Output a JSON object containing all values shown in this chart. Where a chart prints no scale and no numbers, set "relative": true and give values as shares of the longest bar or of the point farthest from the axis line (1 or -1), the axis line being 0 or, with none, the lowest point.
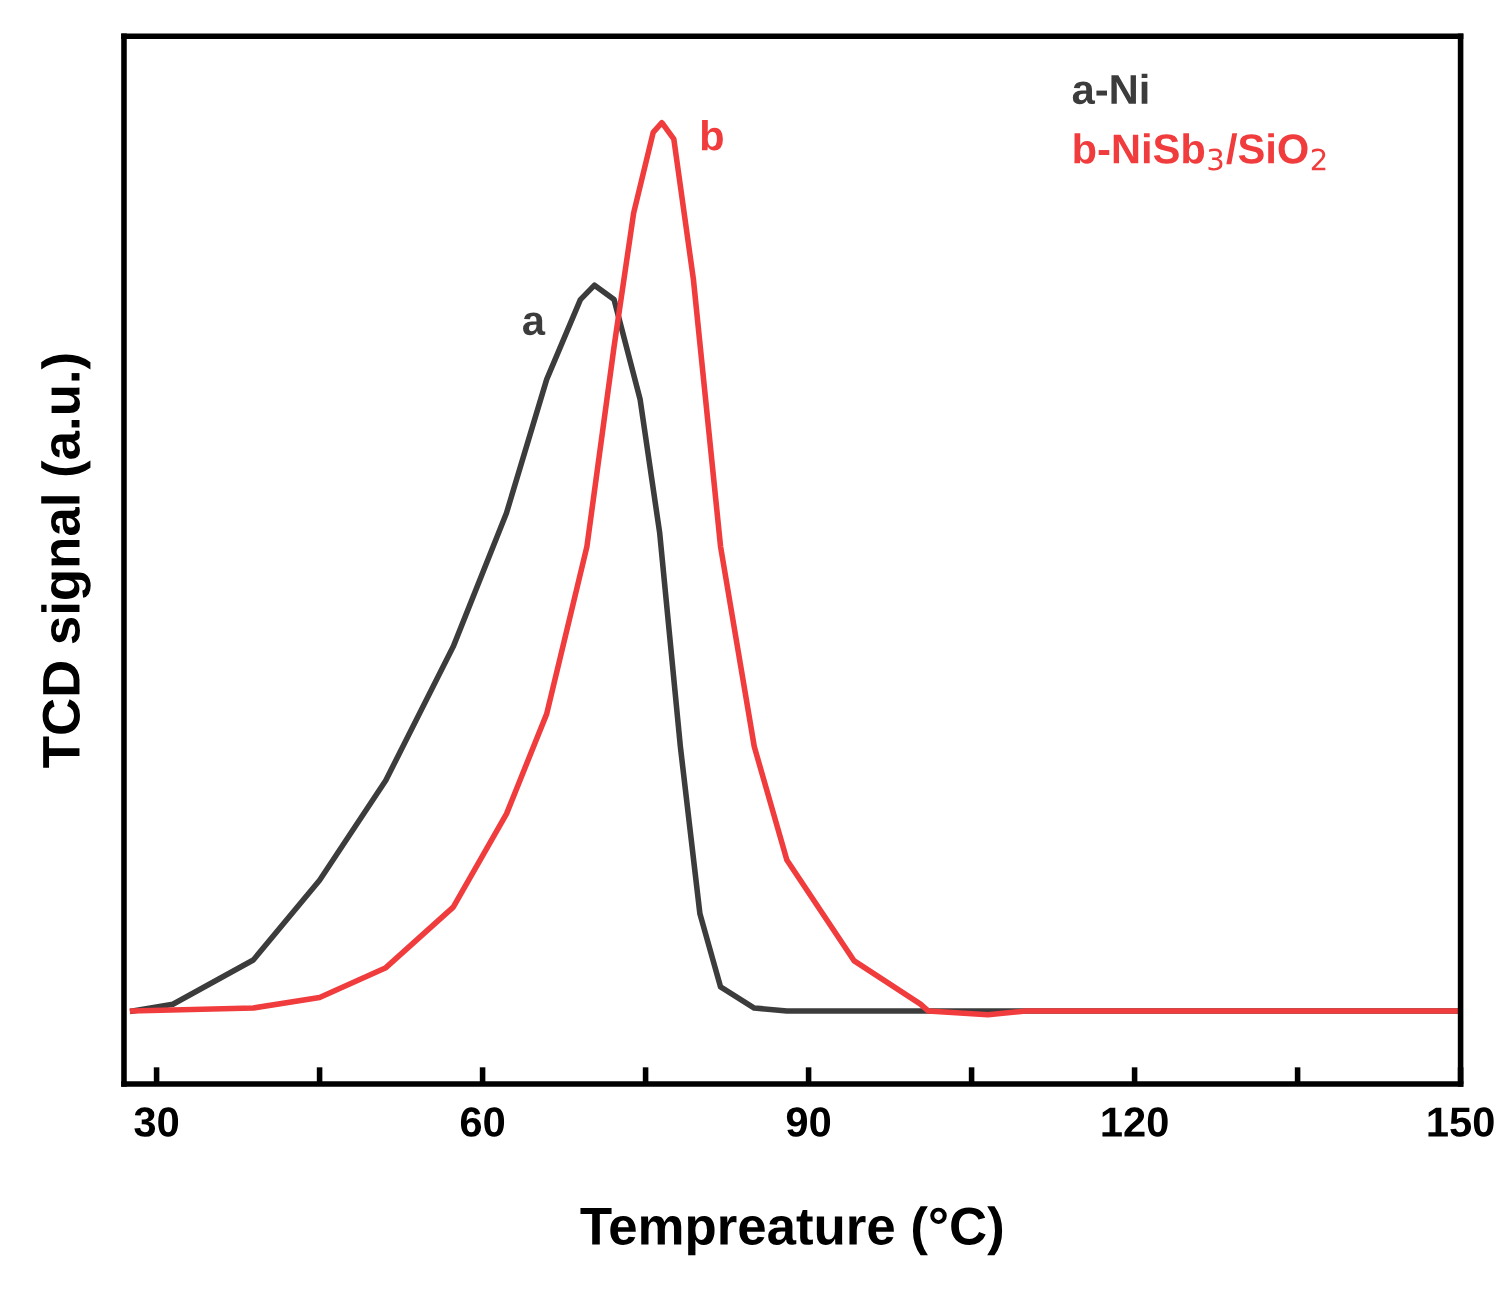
{
  "chart_data": {
    "type": "line",
    "relative": true,
    "xlabel": "Tempreature (°C)",
    "ylabel": "TCD signal (a.u.)",
    "xlim": [
      27,
      150
    ],
    "xticks": [
      30,
      {
        "value": 45,
        "label": null
      },
      60,
      {
        "value": 75,
        "label": null
      },
      90,
      {
        "value": 105,
        "label": null
      },
      120,
      {
        "value": 135,
        "label": null
      },
      150
    ],
    "grid": false,
    "legend": "top right",
    "marker": "none",
    "line_style": "solid",
    "series": [
      {
        "name": "a-Ni",
        "color": "#3c3c3c",
        "x": [
          27.8,
          31.5,
          38.9,
          45.0,
          51.1,
          57.3,
          62.2,
          65.9,
          69.0,
          70.3,
          72.1,
          74.5,
          76.3,
          78.2,
          80.0,
          81.9,
          85.0,
          88.0,
          100,
          120,
          150
        ],
        "values": [
          0.076,
          0.083,
          0.129,
          0.212,
          0.316,
          0.455,
          0.594,
          0.733,
          0.816,
          0.831,
          0.816,
          0.712,
          0.573,
          0.351,
          0.177,
          0.101,
          0.079,
          0.076,
          0.076,
          0.076,
          0.076
        ]
      },
      {
        "name": "b-NiSb$_{3}$/SiO$_{2}$",
        "color": "#f03c3c",
        "x": [
          27.8,
          38.9,
          45.0,
          51.1,
          57.3,
          62.2,
          65.9,
          69.6,
          72.1,
          73.9,
          75.7,
          76.5,
          77.6,
          79.4,
          81.9,
          85.0,
          88.0,
          94.2,
          100.3,
          101.0,
          106.5,
          110,
          120,
          150
        ],
        "values": [
          0.076,
          0.079,
          0.09,
          0.121,
          0.184,
          0.281,
          0.385,
          0.559,
          0.767,
          0.906,
          0.99,
          1.0,
          0.983,
          0.837,
          0.559,
          0.351,
          0.233,
          0.128,
          0.083,
          0.076,
          0.072,
          0.076,
          0.076,
          0.076
        ]
      }
    ],
    "annotations": [
      "a",
      "b"
    ]
  }
}
